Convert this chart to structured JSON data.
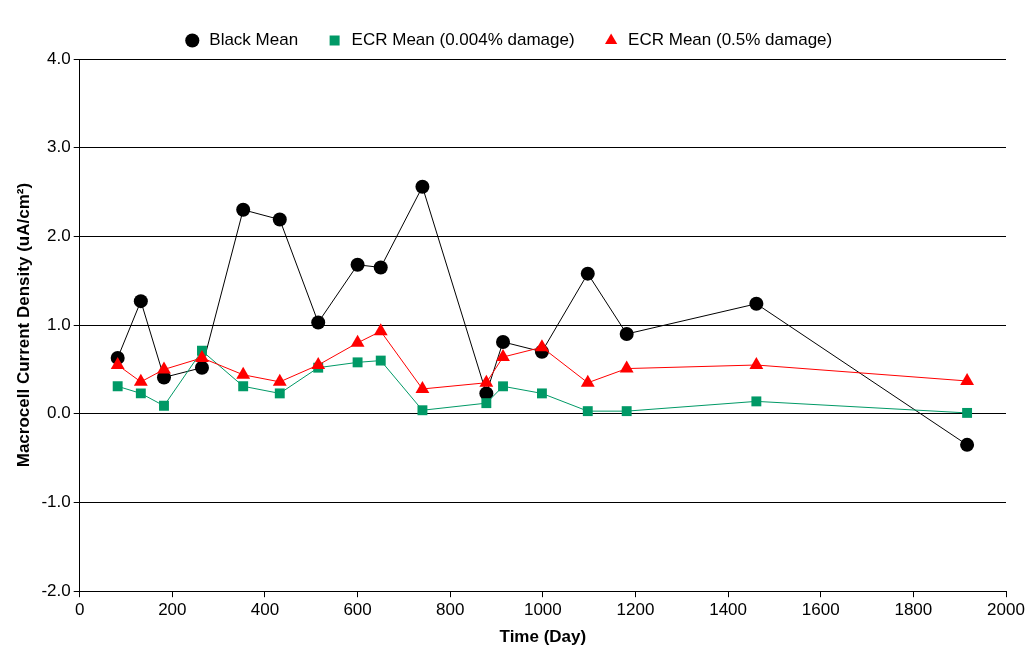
{
  "chart_data": {
    "type": "line",
    "xlabel": "Time (Day)",
    "ylabel": "Macrocell Current Density (uA/cm²)",
    "x": [
      82,
      132,
      182,
      264,
      353,
      432,
      515,
      600,
      650,
      740,
      878,
      914,
      998,
      1097,
      1181,
      1461,
      1916
    ],
    "series": [
      {
        "name": "Black Mean",
        "color": "#000000",
        "marker": "circle",
        "values": [
          0.63,
          1.27,
          0.41,
          0.52,
          2.3,
          2.19,
          1.03,
          1.68,
          1.65,
          2.56,
          0.23,
          0.81,
          0.7,
          1.58,
          0.9,
          1.24,
          -0.35
        ]
      },
      {
        "name": "ECR Mean (0.004% damage)",
        "color": "#009966",
        "marker": "square",
        "values": [
          0.31,
          0.23,
          0.09,
          0.71,
          0.31,
          0.23,
          0.52,
          0.58,
          0.6,
          0.04,
          0.12,
          0.31,
          0.23,
          0.03,
          0.03,
          0.14,
          0.01
        ]
      },
      {
        "name": "ECR Mean (0.5% damage)",
        "color": "#ff0000",
        "marker": "triangle",
        "values": [
          0.55,
          0.36,
          0.5,
          0.63,
          0.44,
          0.36,
          0.55,
          0.8,
          0.93,
          0.28,
          0.35,
          0.64,
          0.75,
          0.35,
          0.51,
          0.55,
          0.37
        ]
      }
    ],
    "xlim": [
      0,
      2000
    ],
    "xticks": [
      0,
      200,
      400,
      600,
      800,
      1000,
      1200,
      1400,
      1600,
      1800,
      2000
    ],
    "ylim": [
      -2,
      4
    ],
    "yticks": [
      {
        "value": -2,
        "label": "-2.0"
      },
      {
        "value": -1,
        "label": "-1.0"
      },
      {
        "value": 0,
        "label": "0.0"
      },
      {
        "value": 1,
        "label": "1.0"
      },
      {
        "value": 2,
        "label": "2.0"
      },
      {
        "value": 3,
        "label": "3.0"
      },
      {
        "value": 4,
        "label": "4.0"
      }
    ],
    "grid": "y",
    "legend": "top",
    "line_style": "solid"
  }
}
